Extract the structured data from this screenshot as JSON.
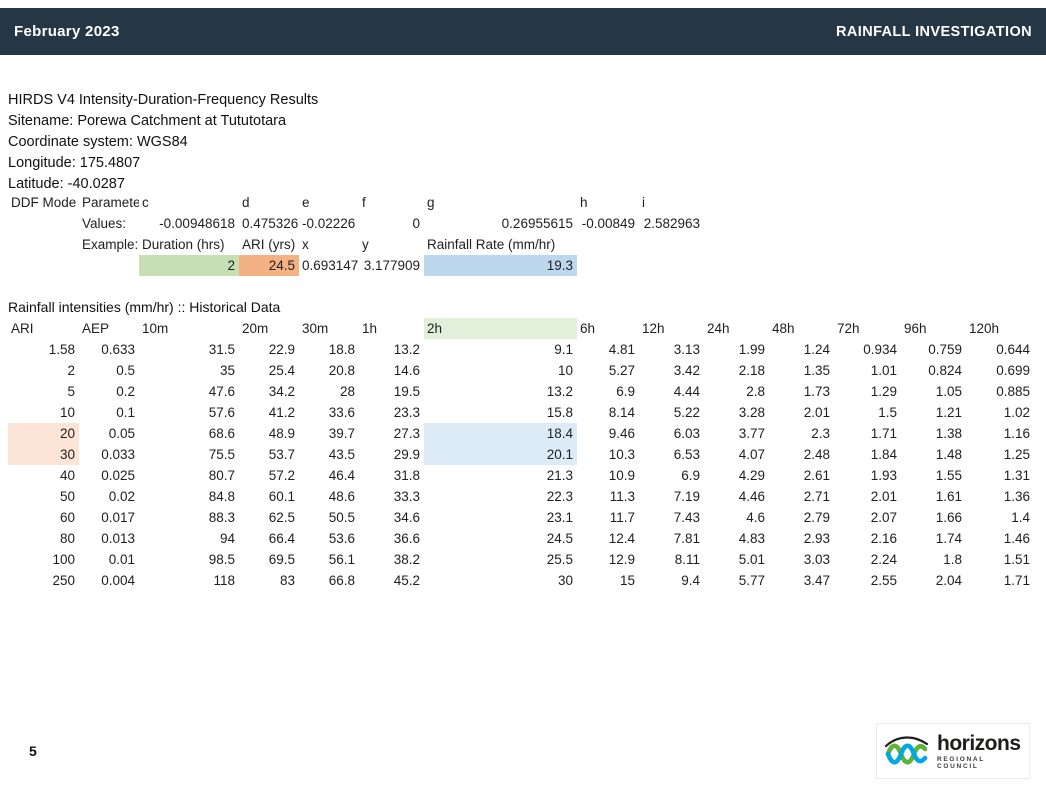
{
  "header": {
    "date": "February 2023",
    "title": "RAINFALL INVESTIGATION",
    "bar_color": "#253745"
  },
  "meta": {
    "lines": [
      "HIRDS V4 Intensity-Duration-Frequency Results",
      "Sitename: Porewa Catchment at Tututotara",
      "Coordinate system: WGS84",
      "Longitude: 175.4807",
      "Latitude: -40.0287"
    ]
  },
  "ddf": {
    "model_label": "DDF Mode",
    "param_label": "Paramete",
    "param_headers": [
      "c",
      "d",
      "e",
      "f",
      "g",
      "h",
      "i"
    ],
    "values_label": "Values:",
    "values": [
      -0.00948618,
      0.475326,
      -0.02226,
      0,
      0.26955615,
      -0.00849,
      2.582963
    ],
    "example_label": "Example:",
    "example_headers": [
      "Duration (hrs)",
      "ARI (yrs)",
      "x",
      "y",
      "Rainfall Rate (mm/hr)"
    ],
    "example_values": [
      2,
      24.5,
      0.693147,
      3.177909,
      19.3
    ],
    "highlight_colors": {
      "duration_cell": "#C6E0B4",
      "ari_cell": "#F4B183",
      "rainfall_rate_cell": "#BDD7EE"
    }
  },
  "intensities": {
    "title": "Rainfall intensities (mm/hr) :: Historical Data",
    "columns": [
      "ARI",
      "AEP",
      "10m",
      "20m",
      "30m",
      "1h",
      "2h",
      "6h",
      "12h",
      "24h",
      "48h",
      "72h",
      "96h",
      "120h"
    ],
    "rows": [
      [
        1.58,
        0.633,
        31.5,
        22.9,
        18.8,
        13.2,
        9.1,
        4.81,
        3.13,
        1.99,
        1.24,
        0.934,
        0.759,
        0.644
      ],
      [
        2,
        0.5,
        35,
        25.4,
        20.8,
        14.6,
        10,
        5.27,
        3.42,
        2.18,
        1.35,
        1.01,
        0.824,
        0.699
      ],
      [
        5,
        0.2,
        47.6,
        34.2,
        28,
        19.5,
        13.2,
        6.9,
        4.44,
        2.8,
        1.73,
        1.29,
        1.05,
        0.885
      ],
      [
        10,
        0.1,
        57.6,
        41.2,
        33.6,
        23.3,
        15.8,
        8.14,
        5.22,
        3.28,
        2.01,
        1.5,
        1.21,
        1.02
      ],
      [
        20,
        0.05,
        68.6,
        48.9,
        39.7,
        27.3,
        18.4,
        9.46,
        6.03,
        3.77,
        2.3,
        1.71,
        1.38,
        1.16
      ],
      [
        30,
        0.033,
        75.5,
        53.7,
        43.5,
        29.9,
        20.1,
        10.3,
        6.53,
        4.07,
        2.48,
        1.84,
        1.48,
        1.25
      ],
      [
        40,
        0.025,
        80.7,
        57.2,
        46.4,
        31.8,
        21.3,
        10.9,
        6.9,
        4.29,
        2.61,
        1.93,
        1.55,
        1.31
      ],
      [
        50,
        0.02,
        84.8,
        60.1,
        48.6,
        33.3,
        22.3,
        11.3,
        7.19,
        4.46,
        2.71,
        2.01,
        1.61,
        1.36
      ],
      [
        60,
        0.017,
        88.3,
        62.5,
        50.5,
        34.6,
        23.1,
        11.7,
        7.43,
        4.6,
        2.79,
        2.07,
        1.66,
        1.4
      ],
      [
        80,
        0.013,
        94,
        66.4,
        53.6,
        36.6,
        24.5,
        12.4,
        7.81,
        4.83,
        2.93,
        2.16,
        1.74,
        1.46
      ],
      [
        100,
        0.01,
        98.5,
        69.5,
        56.1,
        38.2,
        25.5,
        12.9,
        8.11,
        5.01,
        3.03,
        2.24,
        1.8,
        1.51
      ],
      [
        250,
        0.004,
        118,
        83,
        66.8,
        45.2,
        30,
        15,
        9.4,
        5.77,
        3.47,
        2.55,
        2.04,
        1.71
      ]
    ],
    "highlight_colors": {
      "header_2h": "#E2EFDA",
      "ari_rows_20_30": "#FCE4D6",
      "rate_2h_rows_20_30": "#DDEBF7"
    }
  },
  "footer": {
    "page_number": "5",
    "logo": {
      "name": "horizons",
      "tagline": "REGIONAL COUNCIL",
      "wave_green": "#5cb335",
      "wave_blue": "#00a7e0"
    }
  }
}
